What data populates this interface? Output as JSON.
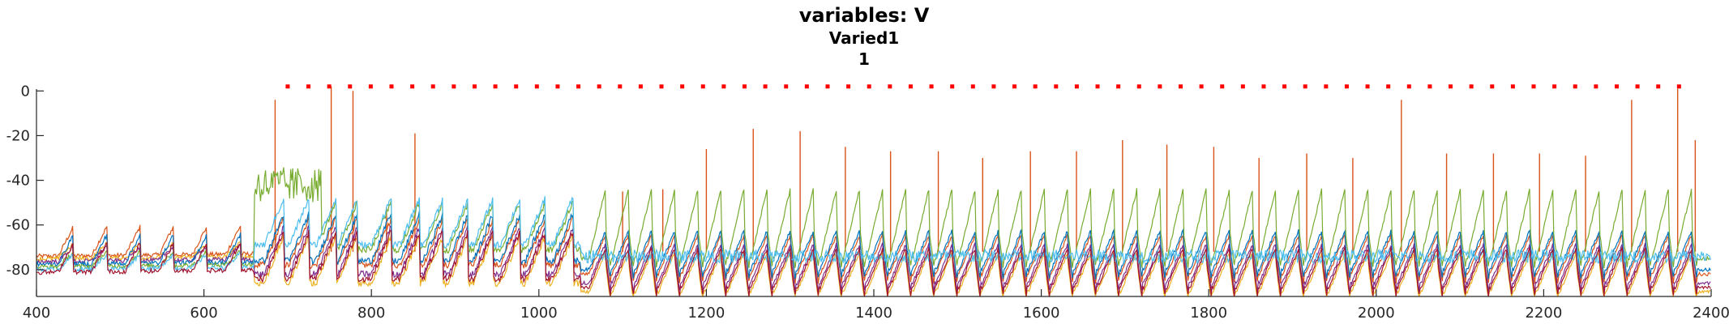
{
  "chart_data": {
    "type": "line",
    "title": "variables: V",
    "subtitle": "Varied1",
    "subtitle2": "1",
    "xlim": [
      400,
      2400
    ],
    "ylim": [
      -92,
      3
    ],
    "x_ticks": [
      400,
      600,
      800,
      1000,
      1200,
      1400,
      1600,
      1800,
      2000,
      2200,
      2400
    ],
    "y_ticks": [
      0,
      -20,
      -40,
      -60,
      -80
    ],
    "grid": false,
    "legend": "none",
    "series_colors": [
      "#D95319",
      "#EDB120",
      "#7E2F8E",
      "#0072BD",
      "#77AC30",
      "#4DBEEE",
      "#A2142F"
    ],
    "series": [
      {
        "color": "#D95319",
        "spike_peaks": [
          [
            685,
            -4
          ],
          [
            752,
            2
          ],
          [
            778,
            0
          ],
          [
            818,
            -52
          ],
          [
            852,
            -19
          ],
          [
            1100,
            -45
          ],
          [
            1148,
            -44
          ],
          [
            1200,
            -26
          ],
          [
            1256,
            -17
          ],
          [
            1312,
            -18
          ],
          [
            1366,
            -25
          ],
          [
            1420,
            -27
          ],
          [
            1477,
            -27
          ],
          [
            1530,
            -30
          ],
          [
            1587,
            -27
          ],
          [
            1642,
            -27
          ],
          [
            1697,
            -22
          ],
          [
            1750,
            -24
          ],
          [
            1806,
            -25
          ],
          [
            1860,
            -30
          ],
          [
            1917,
            -28
          ],
          [
            1972,
            -30
          ],
          [
            2030,
            -4
          ],
          [
            2084,
            -28
          ],
          [
            2140,
            -28
          ],
          [
            2195,
            -28
          ],
          [
            2250,
            -29
          ],
          [
            2305,
            -4
          ],
          [
            2360,
            1
          ],
          [
            2381,
            -22
          ]
        ]
      },
      {
        "color": "#EDB120",
        "baseline": -90
      },
      {
        "color": "#7E2F8E",
        "baseline": -86
      },
      {
        "color": "#0072BD",
        "baseline": -80
      },
      {
        "color": "#77AC30",
        "baseline": -75,
        "burst_range": [
          660,
          740
        ]
      },
      {
        "color": "#4DBEEE",
        "baseline": -73
      },
      {
        "color": "#A2142F",
        "baseline": -88
      }
    ],
    "markers": {
      "color": "#FF0000",
      "y": 2,
      "x_start": 700,
      "x_end": 2380,
      "spacing": 24.8
    }
  }
}
